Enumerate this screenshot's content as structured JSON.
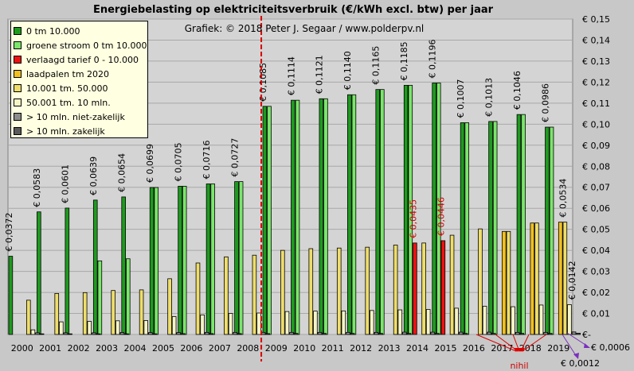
{
  "chart_data": {
    "type": "bar",
    "title": "Energiebelasting  op elektriciteitsverbruik  (€/kWh  excl. btw) per jaar",
    "subtitle": "Grafiek:  © 2018  Peter J. Segaar / www.polderpv.nl",
    "categories": [
      "2000",
      "2001",
      "2002",
      "2003",
      "2004",
      "2005",
      "2006",
      "2007",
      "2008",
      "2009",
      "2010",
      "2011",
      "2012",
      "2013",
      "2014",
      "2015",
      "2016",
      "2017",
      "2018",
      "2019"
    ],
    "ylim": [
      0,
      0.15
    ],
    "yticks": [
      "€-",
      "€ 0,01",
      "€ 0,02",
      "€ 0,03",
      "€ 0,04",
      "€ 0,05",
      "€ 0,06",
      "€ 0,07",
      "€ 0,08",
      "€ 0,09",
      "€ 0,10",
      "€ 0,11",
      "€ 0,12",
      "€ 0,13",
      "€ 0,14",
      "€ 0,15"
    ],
    "grid": true,
    "legend_position": "top-left",
    "series": [
      {
        "name": "0 tm 10.000",
        "color": "#1e9b1e",
        "values": [
          0.0372,
          0.0583,
          0.0601,
          0.0639,
          0.0654,
          0.0699,
          0.0705,
          0.0716,
          0.0727,
          0.1085,
          0.1114,
          0.1121,
          0.114,
          0.1165,
          0.1185,
          0.1196,
          0.1007,
          0.1013,
          0.1046,
          0.0986
        ],
        "labels": [
          "€ 0,0372",
          "€ 0,0583",
          "€ 0,0601",
          "€ 0,0639",
          "€ 0,0654",
          "€ 0,0699",
          "€ 0,0705",
          "€ 0,0716",
          "€ 0,0727",
          "€ 0,1085",
          "€ 0,1114",
          "€ 0,1121",
          "€ 0,1140",
          "€ 0,1165",
          "€ 0,1185",
          "€ 0,1196",
          "€ 0,1007",
          "€ 0,1013",
          "€ 0,1046",
          "€ 0,0986"
        ]
      },
      {
        "name": "groene stroom 0 tm 10.000",
        "color": "#7be66b",
        "values": [
          0,
          0,
          0,
          0.035,
          0.036,
          0.0699,
          0.0705,
          0.0716,
          0.0727,
          0.1085,
          0.1114,
          0.1121,
          0.114,
          0.1165,
          0.1185,
          0.1196,
          0.1007,
          0.1013,
          0.1046,
          0.0986
        ]
      },
      {
        "name": "verlaagd tarief 0 - 10.000",
        "color": "#ee1111",
        "values": [
          0,
          0,
          0,
          0,
          0,
          0,
          0,
          0,
          0,
          0,
          0,
          0,
          0,
          0,
          0.0435,
          0.0446,
          0,
          0,
          0,
          0
        ],
        "labels": [
          "",
          "",
          "",
          "",
          "",
          "",
          "",
          "",
          "",
          "",
          "",
          "",
          "",
          "",
          "€ 0,0435",
          "€ 0,0446",
          "",
          "",
          "",
          ""
        ]
      },
      {
        "name": "laadpalen tm 2020",
        "color": "#f0c020",
        "values": [
          0,
          0,
          0,
          0,
          0,
          0,
          0,
          0,
          0,
          0,
          0,
          0,
          0,
          0,
          0,
          0,
          0,
          0.049,
          0.053,
          0.0534
        ],
        "labels": [
          "",
          "",
          "",
          "",
          "",
          "",
          "",
          "",
          "",
          "",
          "",
          "",
          "",
          "",
          "",
          "",
          "",
          "",
          "",
          "€ 0,0534"
        ]
      },
      {
        "name": "10.001 tm. 50.000",
        "color": "#eedd6a",
        "values": [
          0.0163,
          0.0195,
          0.0199,
          0.0209,
          0.0212,
          0.0265,
          0.034,
          0.0369,
          0.0377,
          0.04,
          0.0408,
          0.0411,
          0.0415,
          0.0425,
          0.0435,
          0.0472,
          0.0502,
          0.049,
          0.053,
          0.0534
        ]
      },
      {
        "name": "50.001 tm. 10 mln.",
        "color": "#f4f4c6",
        "values": [
          0.0022,
          0.006,
          0.0062,
          0.0065,
          0.0066,
          0.0085,
          0.0093,
          0.01,
          0.0102,
          0.0109,
          0.0111,
          0.0112,
          0.0114,
          0.0117,
          0.0119,
          0.0125,
          0.0134,
          0.0132,
          0.014,
          0.0142
        ],
        "labels": [
          "",
          "",
          "",
          "",
          "",
          "",
          "",
          "",
          "",
          "",
          "",
          "",
          "",
          "",
          "",
          "",
          "",
          "",
          "",
          "€ 0,0142"
        ]
      },
      {
        "name": "> 10 mln. niet-zakelijk",
        "color": "#8c8c8c",
        "values": [
          0.0008,
          0.0008,
          0.0008,
          0.0009,
          0.0009,
          0.0009,
          0.001,
          0.001,
          0.001,
          0.001,
          0.001,
          0.001,
          0.001,
          0.0011,
          0.0011,
          0.0011,
          0.0011,
          0.001,
          0.001,
          0.0012
        ]
      },
      {
        "name": "> 10 mln. zakelijk",
        "color": "#5a5a5a",
        "values": [
          0.0003,
          0.0003,
          0.0003,
          0.0003,
          0.0003,
          0.0004,
          0.0004,
          0.0004,
          0.0004,
          0.0005,
          0.0005,
          0.0005,
          0.0005,
          0.0005,
          0.0005,
          0.0005,
          0.0005,
          0.0005,
          0.0005,
          0.0006
        ]
      }
    ],
    "divider_after": "2008",
    "annotations": {
      "nihil": "nihil",
      "a0006": "€ 0,0006",
      "a0012": "€ 0,0012"
    }
  }
}
